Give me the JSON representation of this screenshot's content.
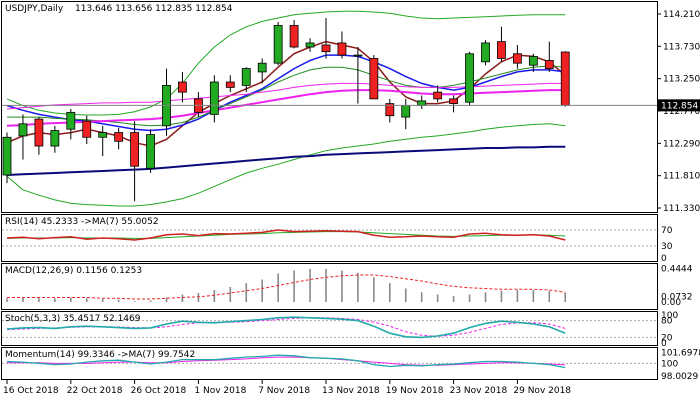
{
  "chart_data": {
    "type": "candlestick",
    "title": "USDJPY,Daily",
    "ohlc_header": "113.646 113.656 112.835 112.854",
    "current_price_label": "112.854",
    "colors": {
      "up_candle": "#22aa22",
      "down_candle": "#ee2222",
      "bollinger": "#22aa22",
      "ma_fast": "#8b1a1a",
      "ma_mid": "#1a1aee",
      "ma_green": "#228b22",
      "ma_magenta": "#ee22ee",
      "ma_navy": "#0a0a7a",
      "rsi_line": "#d02020",
      "rsi_ma": "#22aa22",
      "macd_hist": "#888888",
      "macd_signal": "#ee2222",
      "stoch_main": "#22aaaa",
      "stoch_signal": "#ee22ee",
      "momentum_main": "#22aaaa",
      "momentum_ma": "#ee22ee"
    },
    "price_axis": {
      "ticks": [
        "114.210",
        "113.730",
        "113.250",
        "112.770",
        "112.290",
        "111.810",
        "111.330"
      ],
      "range": [
        111.33,
        114.21
      ]
    },
    "x_axis": {
      "labels": [
        "16 Oct 2018",
        "22 Oct 2018",
        "26 Oct 2018",
        "1 Nov 2018",
        "7 Nov 2018",
        "13 Nov 2018",
        "19 Nov 2018",
        "23 Nov 2018",
        "29 Nov 2018"
      ],
      "label_indices": [
        0,
        4,
        8,
        12,
        16,
        20,
        24,
        28,
        32
      ]
    },
    "candles": [
      {
        "o": 111.82,
        "h": 112.45,
        "l": 111.7,
        "c": 112.38
      },
      {
        "o": 112.4,
        "h": 112.72,
        "l": 112.05,
        "c": 112.58
      },
      {
        "o": 112.65,
        "h": 112.68,
        "l": 112.12,
        "c": 112.25
      },
      {
        "o": 112.25,
        "h": 112.55,
        "l": 112.15,
        "c": 112.48
      },
      {
        "o": 112.5,
        "h": 112.8,
        "l": 112.35,
        "c": 112.75
      },
      {
        "o": 112.62,
        "h": 112.7,
        "l": 112.28,
        "c": 112.38
      },
      {
        "o": 112.38,
        "h": 112.55,
        "l": 112.1,
        "c": 112.45
      },
      {
        "o": 112.45,
        "h": 112.52,
        "l": 112.2,
        "c": 112.32
      },
      {
        "o": 112.45,
        "h": 112.62,
        "l": 111.43,
        "c": 111.95
      },
      {
        "o": 111.92,
        "h": 112.5,
        "l": 111.85,
        "c": 112.42
      },
      {
        "o": 112.55,
        "h": 113.4,
        "l": 112.4,
        "c": 113.15
      },
      {
        "o": 113.2,
        "h": 113.35,
        "l": 112.9,
        "c": 113.05
      },
      {
        "o": 112.95,
        "h": 113.05,
        "l": 112.68,
        "c": 112.75
      },
      {
        "o": 112.72,
        "h": 113.3,
        "l": 112.6,
        "c": 113.2
      },
      {
        "o": 113.2,
        "h": 113.3,
        "l": 113.05,
        "c": 113.12
      },
      {
        "o": 113.15,
        "h": 113.42,
        "l": 113.05,
        "c": 113.4
      },
      {
        "o": 113.35,
        "h": 113.55,
        "l": 113.18,
        "c": 113.48
      },
      {
        "o": 113.48,
        "h": 114.09,
        "l": 113.45,
        "c": 114.04
      },
      {
        "o": 114.04,
        "h": 114.12,
        "l": 113.7,
        "c": 113.72
      },
      {
        "o": 113.72,
        "h": 113.85,
        "l": 113.65,
        "c": 113.78
      },
      {
        "o": 113.75,
        "h": 114.15,
        "l": 113.55,
        "c": 113.65
      },
      {
        "o": 113.78,
        "h": 113.95,
        "l": 113.55,
        "c": 113.6
      },
      {
        "o": 113.6,
        "h": 113.72,
        "l": 112.88,
        "c": 113.6
      },
      {
        "o": 113.55,
        "h": 113.6,
        "l": 112.95,
        "c": 112.95
      },
      {
        "o": 112.88,
        "h": 112.95,
        "l": 112.6,
        "c": 112.7
      },
      {
        "o": 112.68,
        "h": 112.95,
        "l": 112.5,
        "c": 112.85
      },
      {
        "o": 112.85,
        "h": 113.0,
        "l": 112.8,
        "c": 112.92
      },
      {
        "o": 113.05,
        "h": 113.15,
        "l": 112.9,
        "c": 112.95
      },
      {
        "o": 112.95,
        "h": 113.0,
        "l": 112.75,
        "c": 112.88
      },
      {
        "o": 112.9,
        "h": 113.65,
        "l": 112.85,
        "c": 113.62
      },
      {
        "o": 113.5,
        "h": 113.82,
        "l": 113.45,
        "c": 113.78
      },
      {
        "o": 113.8,
        "h": 114.02,
        "l": 113.5,
        "c": 113.55
      },
      {
        "o": 113.62,
        "h": 113.75,
        "l": 113.4,
        "c": 113.48
      },
      {
        "o": 113.45,
        "h": 113.62,
        "l": 113.35,
        "c": 113.58
      },
      {
        "o": 113.52,
        "h": 113.8,
        "l": 113.35,
        "c": 113.4
      },
      {
        "o": 113.646,
        "h": 113.656,
        "l": 112.835,
        "c": 112.854
      }
    ],
    "overlays": [
      {
        "id": "bb_upper",
        "values": [
          112.95,
          112.85,
          112.78,
          112.74,
          112.72,
          112.71,
          112.71,
          112.72,
          112.76,
          112.83,
          112.95,
          113.18,
          113.48,
          113.72,
          113.9,
          114.02,
          114.1,
          114.15,
          114.2,
          114.22,
          114.24,
          114.25,
          114.25,
          114.24,
          114.22,
          114.18,
          114.15,
          114.14,
          114.15,
          114.16,
          114.17,
          114.18,
          114.19,
          114.2,
          114.2,
          114.2
        ]
      },
      {
        "id": "bb_lower",
        "values": [
          111.8,
          111.6,
          111.52,
          111.45,
          111.4,
          111.38,
          111.37,
          111.36,
          111.36,
          111.38,
          111.42,
          111.47,
          111.55,
          111.65,
          111.75,
          111.85,
          111.92,
          111.98,
          112.05,
          112.12,
          112.18,
          112.22,
          112.25,
          112.28,
          112.32,
          112.35,
          112.38,
          112.4,
          112.43,
          112.46,
          112.5,
          112.53,
          112.55,
          112.57,
          112.58,
          112.55
        ]
      },
      {
        "id": "ma_fast",
        "values": [
          112.3,
          112.4,
          112.45,
          112.42,
          112.45,
          112.5,
          112.45,
          112.4,
          112.3,
          112.25,
          112.35,
          112.55,
          112.75,
          112.88,
          113.0,
          113.1,
          113.2,
          113.42,
          113.62,
          113.72,
          113.8,
          113.75,
          113.7,
          113.5,
          113.2,
          112.98,
          112.88,
          112.88,
          112.92,
          113.1,
          113.32,
          113.5,
          113.6,
          113.58,
          113.5,
          113.3
        ]
      },
      {
        "id": "ma_mid",
        "values": [
          112.85,
          112.78,
          112.72,
          112.68,
          112.64,
          112.62,
          112.58,
          112.54,
          112.5,
          112.48,
          112.5,
          112.56,
          112.65,
          112.78,
          112.9,
          113.0,
          113.1,
          113.25,
          113.4,
          113.52,
          113.6,
          113.6,
          113.58,
          113.5,
          113.4,
          113.28,
          113.18,
          113.12,
          113.08,
          113.12,
          113.2,
          113.28,
          113.35,
          113.38,
          113.38,
          113.35
        ]
      },
      {
        "id": "ma_green",
        "values": [
          112.68,
          112.68,
          112.68,
          112.66,
          112.65,
          112.64,
          112.62,
          112.6,
          112.57,
          112.55,
          112.56,
          112.6,
          112.68,
          112.78,
          112.88,
          112.98,
          113.08,
          113.2,
          113.3,
          113.38,
          113.42,
          113.42,
          113.38,
          113.3,
          113.22,
          113.15,
          113.12,
          113.12,
          113.15,
          113.2,
          113.26,
          113.32,
          113.38,
          113.42,
          113.44,
          113.42
        ]
      },
      {
        "id": "ma_magenta",
        "values": [
          112.55,
          112.56,
          112.58,
          112.59,
          112.6,
          112.61,
          112.62,
          112.63,
          112.64,
          112.65,
          112.67,
          112.7,
          112.74,
          112.78,
          112.82,
          112.86,
          112.9,
          112.94,
          112.98,
          113.02,
          113.05,
          113.07,
          113.08,
          113.08,
          113.07,
          113.05,
          113.03,
          113.02,
          113.02,
          113.03,
          113.04,
          113.05,
          113.06,
          113.07,
          113.08,
          113.08
        ]
      },
      {
        "id": "ma_pink",
        "values": [
          112.8,
          112.82,
          112.84,
          112.86,
          112.87,
          112.88,
          112.89,
          112.89,
          112.9,
          112.9,
          112.92,
          112.94,
          112.96,
          112.98,
          113.0,
          113.02,
          113.05,
          113.08,
          113.12,
          113.15,
          113.17,
          113.18,
          113.18,
          113.17,
          113.15,
          113.13,
          113.12,
          113.12,
          113.12,
          113.13,
          113.14,
          113.15,
          113.16,
          113.17,
          113.18,
          113.18
        ]
      },
      {
        "id": "ma_navy",
        "values": [
          111.82,
          111.83,
          111.84,
          111.85,
          111.86,
          111.87,
          111.88,
          111.89,
          111.9,
          111.91,
          111.93,
          111.95,
          111.97,
          111.99,
          112.01,
          112.03,
          112.05,
          112.07,
          112.09,
          112.1,
          112.12,
          112.13,
          112.14,
          112.15,
          112.16,
          112.17,
          112.18,
          112.19,
          112.2,
          112.21,
          112.22,
          112.22,
          112.23,
          112.23,
          112.24,
          112.24
        ]
      }
    ],
    "indicators": {
      "rsi": {
        "label": "RSI(14) 45.2333  ->MA(7) 55.0052",
        "levels": [
          "70",
          "30",
          "0"
        ],
        "rsi_values": [
          50,
          52,
          48,
          51,
          53,
          47,
          50,
          48,
          45,
          50,
          58,
          60,
          56,
          61,
          60,
          62,
          64,
          70,
          66,
          67,
          68,
          67,
          66,
          57,
          52,
          53,
          55,
          53,
          52,
          60,
          62,
          58,
          57,
          58,
          55,
          45
        ],
        "ma_values": [
          49,
          50,
          50,
          50,
          51,
          50,
          50,
          50,
          49,
          49,
          51,
          53,
          55,
          57,
          59,
          60,
          61,
          63,
          64,
          65,
          66,
          66,
          65,
          63,
          61,
          59,
          57,
          55,
          54,
          55,
          56,
          57,
          57,
          58,
          57,
          55
        ]
      },
      "macd": {
        "label": "MACD(12,26,9) 0.1156 0.1253",
        "ticks": [
          "0.4444",
          "0.0732",
          "0.00"
        ],
        "hist": [
          0.05,
          0.06,
          0.05,
          0.05,
          0.06,
          0.05,
          0.04,
          0.03,
          0.01,
          0.02,
          0.06,
          0.1,
          0.12,
          0.16,
          0.2,
          0.25,
          0.3,
          0.38,
          0.42,
          0.44,
          0.44,
          0.42,
          0.39,
          0.33,
          0.25,
          0.18,
          0.13,
          0.1,
          0.08,
          0.1,
          0.13,
          0.15,
          0.16,
          0.16,
          0.15,
          0.12
        ],
        "signal": [
          0.06,
          0.06,
          0.06,
          0.06,
          0.06,
          0.06,
          0.05,
          0.05,
          0.04,
          0.04,
          0.05,
          0.06,
          0.07,
          0.09,
          0.12,
          0.15,
          0.18,
          0.22,
          0.26,
          0.3,
          0.33,
          0.35,
          0.36,
          0.36,
          0.34,
          0.31,
          0.28,
          0.24,
          0.21,
          0.19,
          0.18,
          0.17,
          0.17,
          0.17,
          0.16,
          0.13
        ]
      },
      "stoch": {
        "label": "Stoch(5,3,3) 35.4517 52.1469",
        "ticks": [
          "100",
          "80",
          "20",
          "0"
        ],
        "main": [
          50,
          54,
          55,
          52,
          58,
          60,
          58,
          55,
          52,
          54,
          68,
          78,
          74,
          72,
          76,
          80,
          84,
          90,
          92,
          90,
          88,
          85,
          80,
          60,
          35,
          22,
          20,
          25,
          35,
          55,
          70,
          78,
          74,
          68,
          58,
          35
        ],
        "signal": [
          48,
          50,
          52,
          54,
          56,
          58,
          58,
          57,
          55,
          54,
          58,
          66,
          72,
          74,
          74,
          76,
          80,
          84,
          88,
          90,
          90,
          88,
          84,
          75,
          60,
          40,
          28,
          24,
          28,
          38,
          52,
          66,
          72,
          72,
          68,
          52
        ]
      },
      "momentum": {
        "label": "Momentum(14) 99.3346  ->MA(7) 99.7542",
        "ticks": [
          "101.6978",
          "100",
          "98.0029"
        ],
        "main": [
          100.3,
          100.2,
          100.0,
          99.8,
          99.9,
          100.2,
          100.4,
          100.5,
          100.2,
          99.9,
          100.2,
          100.6,
          100.6,
          100.6,
          100.8,
          101.0,
          101.1,
          101.3,
          101.2,
          100.9,
          100.8,
          100.7,
          100.4,
          99.8,
          99.5,
          99.7,
          99.6,
          99.8,
          99.9,
          100.1,
          100.3,
          100.3,
          100.2,
          100.0,
          99.8,
          99.33
        ],
        "ma": [
          100.1,
          100.1,
          100.1,
          100.0,
          100.0,
          100.0,
          100.1,
          100.2,
          100.2,
          100.1,
          100.1,
          100.3,
          100.4,
          100.5,
          100.6,
          100.7,
          100.9,
          101.0,
          101.0,
          100.9,
          100.8,
          100.6,
          100.4,
          100.2,
          100.0,
          99.8,
          99.7,
          99.7,
          99.8,
          99.9,
          100.0,
          100.1,
          100.1,
          100.0,
          99.9,
          99.75
        ]
      }
    }
  }
}
